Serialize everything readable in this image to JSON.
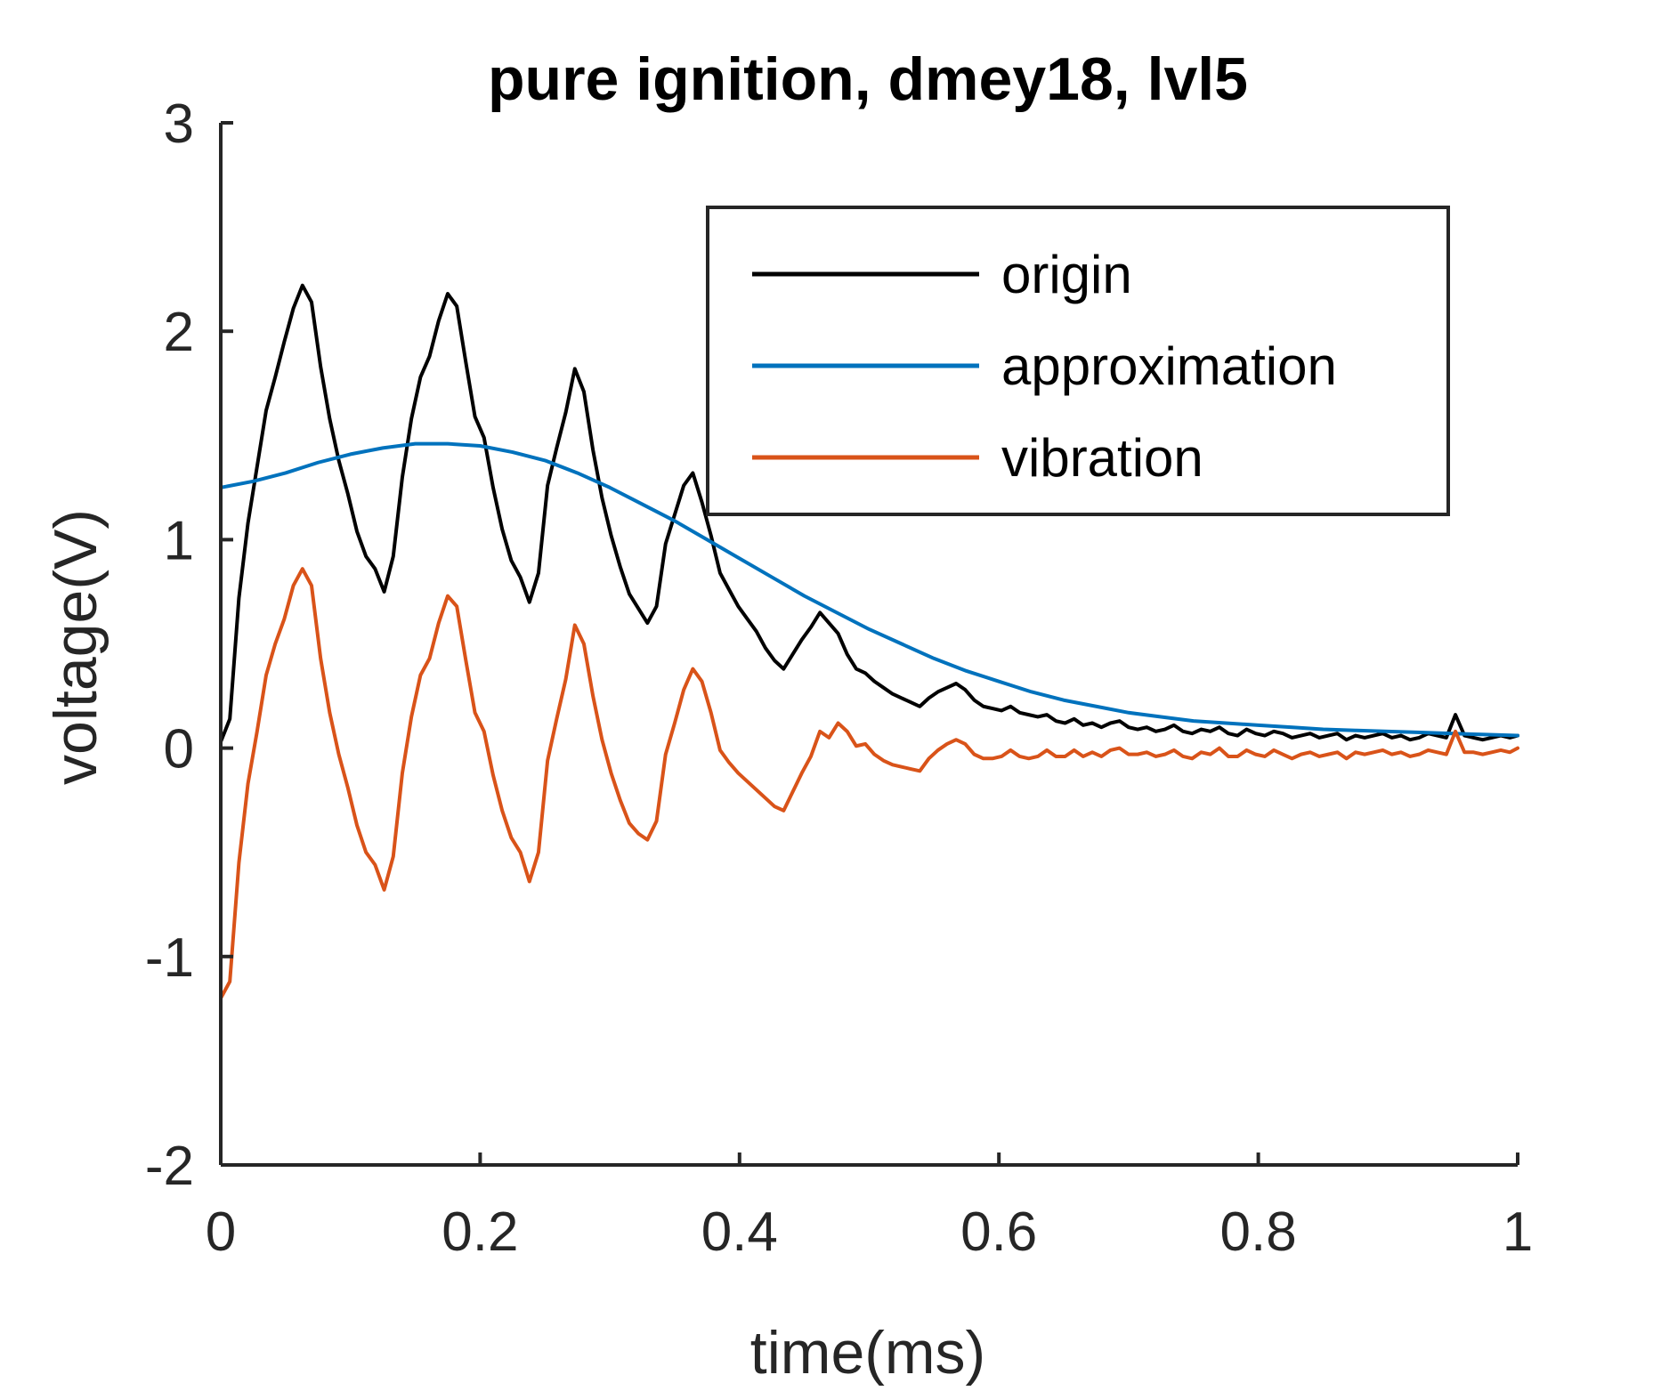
{
  "chart_data": {
    "type": "line",
    "title": "pure ignition, dmey18, lvl5",
    "xlabel": "time(ms)",
    "ylabel": "voltage(V)",
    "xlim": [
      0,
      1
    ],
    "ylim": [
      -2,
      3
    ],
    "xticks": [
      0,
      0.2,
      0.4,
      0.6,
      0.8,
      1
    ],
    "xtick_labels": [
      "0",
      "0.2",
      "0.4",
      "0.6",
      "0.8",
      "1"
    ],
    "yticks": [
      -2,
      -1,
      0,
      1,
      2,
      3
    ],
    "ytick_labels": [
      "-2",
      "-1",
      "0",
      "1",
      "2",
      "3"
    ],
    "grid": false,
    "legend_position": "top-right",
    "series": [
      {
        "name": "origin",
        "color": "#000000",
        "x": [
          0,
          0.007,
          0.014,
          0.021,
          0.028,
          0.035,
          0.042,
          0.049,
          0.056,
          0.063,
          0.07,
          0.077,
          0.084,
          0.091,
          0.098,
          0.105,
          0.112,
          0.119,
          0.126,
          0.133,
          0.14,
          0.147,
          0.154,
          0.161,
          0.168,
          0.175,
          0.182,
          0.189,
          0.196,
          0.203,
          0.21,
          0.217,
          0.224,
          0.231,
          0.238,
          0.245,
          0.252,
          0.259,
          0.266,
          0.273,
          0.28,
          0.287,
          0.294,
          0.301,
          0.308,
          0.315,
          0.322,
          0.329,
          0.336,
          0.343,
          0.35,
          0.357,
          0.364,
          0.371,
          0.378,
          0.385,
          0.392,
          0.399,
          0.406,
          0.413,
          0.42,
          0.427,
          0.434,
          0.441,
          0.448,
          0.455,
          0.462,
          0.469,
          0.476,
          0.483,
          0.49,
          0.497,
          0.504,
          0.511,
          0.518,
          0.525,
          0.532,
          0.539,
          0.546,
          0.553,
          0.56,
          0.567,
          0.574,
          0.581,
          0.588,
          0.595,
          0.602,
          0.609,
          0.616,
          0.623,
          0.63,
          0.637,
          0.644,
          0.651,
          0.658,
          0.665,
          0.672,
          0.679,
          0.686,
          0.693,
          0.7,
          0.707,
          0.714,
          0.721,
          0.728,
          0.735,
          0.742,
          0.749,
          0.756,
          0.763,
          0.77,
          0.777,
          0.784,
          0.791,
          0.798,
          0.805,
          0.812,
          0.819,
          0.826,
          0.833,
          0.84,
          0.847,
          0.854,
          0.861,
          0.868,
          0.875,
          0.882,
          0.889,
          0.896,
          0.903,
          0.91,
          0.917,
          0.924,
          0.931,
          0.938,
          0.945,
          0.952,
          0.959,
          0.966,
          0.973,
          0.98,
          0.987,
          0.994,
          1.0
        ],
        "y": [
          0.03,
          0.14,
          0.72,
          1.08,
          1.35,
          1.62,
          1.78,
          1.95,
          2.11,
          2.22,
          2.14,
          1.83,
          1.58,
          1.38,
          1.22,
          1.04,
          0.92,
          0.86,
          0.75,
          0.92,
          1.3,
          1.58,
          1.78,
          1.88,
          2.05,
          2.18,
          2.12,
          1.85,
          1.59,
          1.49,
          1.25,
          1.05,
          0.9,
          0.82,
          0.7,
          0.84,
          1.26,
          1.44,
          1.61,
          1.82,
          1.71,
          1.43,
          1.2,
          1.02,
          0.87,
          0.74,
          0.67,
          0.6,
          0.68,
          0.98,
          1.12,
          1.26,
          1.32,
          1.18,
          1.02,
          0.84,
          0.76,
          0.68,
          0.62,
          0.56,
          0.48,
          0.42,
          0.38,
          0.45,
          0.52,
          0.58,
          0.65,
          0.6,
          0.55,
          0.45,
          0.38,
          0.36,
          0.32,
          0.29,
          0.26,
          0.24,
          0.22,
          0.2,
          0.24,
          0.27,
          0.29,
          0.31,
          0.28,
          0.23,
          0.2,
          0.19,
          0.18,
          0.2,
          0.17,
          0.16,
          0.15,
          0.16,
          0.13,
          0.12,
          0.14,
          0.11,
          0.12,
          0.1,
          0.12,
          0.13,
          0.1,
          0.09,
          0.1,
          0.08,
          0.09,
          0.11,
          0.08,
          0.07,
          0.09,
          0.08,
          0.1,
          0.07,
          0.06,
          0.09,
          0.07,
          0.06,
          0.08,
          0.07,
          0.05,
          0.06,
          0.07,
          0.05,
          0.06,
          0.07,
          0.04,
          0.06,
          0.05,
          0.06,
          0.07,
          0.05,
          0.06,
          0.04,
          0.05,
          0.07,
          0.06,
          0.05,
          0.16,
          0.06,
          0.05,
          0.04,
          0.05,
          0.06,
          0.05,
          0.06
        ]
      },
      {
        "name": "approximation",
        "color": "#0072BD",
        "x": [
          0,
          0.025,
          0.05,
          0.075,
          0.1,
          0.125,
          0.15,
          0.175,
          0.2,
          0.225,
          0.25,
          0.275,
          0.3,
          0.325,
          0.35,
          0.375,
          0.4,
          0.425,
          0.45,
          0.475,
          0.5,
          0.525,
          0.55,
          0.575,
          0.6,
          0.625,
          0.65,
          0.675,
          0.7,
          0.725,
          0.75,
          0.775,
          0.8,
          0.825,
          0.85,
          0.875,
          0.9,
          0.925,
          0.95,
          0.975,
          1.0
        ],
        "y": [
          1.25,
          1.28,
          1.32,
          1.37,
          1.41,
          1.44,
          1.46,
          1.46,
          1.45,
          1.42,
          1.38,
          1.32,
          1.25,
          1.17,
          1.09,
          1.0,
          0.91,
          0.82,
          0.73,
          0.65,
          0.57,
          0.5,
          0.43,
          0.37,
          0.32,
          0.27,
          0.23,
          0.2,
          0.17,
          0.15,
          0.13,
          0.12,
          0.11,
          0.1,
          0.09,
          0.085,
          0.08,
          0.075,
          0.07,
          0.065,
          0.06
        ]
      },
      {
        "name": "vibration",
        "color": "#D95319",
        "x": [
          0,
          0.007,
          0.014,
          0.021,
          0.028,
          0.035,
          0.042,
          0.049,
          0.056,
          0.063,
          0.07,
          0.077,
          0.084,
          0.091,
          0.098,
          0.105,
          0.112,
          0.119,
          0.126,
          0.133,
          0.14,
          0.147,
          0.154,
          0.161,
          0.168,
          0.175,
          0.182,
          0.189,
          0.196,
          0.203,
          0.21,
          0.217,
          0.224,
          0.231,
          0.238,
          0.245,
          0.252,
          0.259,
          0.266,
          0.273,
          0.28,
          0.287,
          0.294,
          0.301,
          0.308,
          0.315,
          0.322,
          0.329,
          0.336,
          0.343,
          0.35,
          0.357,
          0.364,
          0.371,
          0.378,
          0.385,
          0.392,
          0.399,
          0.406,
          0.413,
          0.42,
          0.427,
          0.434,
          0.441,
          0.448,
          0.455,
          0.462,
          0.469,
          0.476,
          0.483,
          0.49,
          0.497,
          0.504,
          0.511,
          0.518,
          0.525,
          0.532,
          0.539,
          0.546,
          0.553,
          0.56,
          0.567,
          0.574,
          0.581,
          0.588,
          0.595,
          0.602,
          0.609,
          0.616,
          0.623,
          0.63,
          0.637,
          0.644,
          0.651,
          0.658,
          0.665,
          0.672,
          0.679,
          0.686,
          0.693,
          0.7,
          0.707,
          0.714,
          0.721,
          0.728,
          0.735,
          0.742,
          0.749,
          0.756,
          0.763,
          0.77,
          0.777,
          0.784,
          0.791,
          0.798,
          0.805,
          0.812,
          0.819,
          0.826,
          0.833,
          0.84,
          0.847,
          0.854,
          0.861,
          0.868,
          0.875,
          0.882,
          0.889,
          0.896,
          0.903,
          0.91,
          0.917,
          0.924,
          0.931,
          0.938,
          0.945,
          0.952,
          0.959,
          0.966,
          0.973,
          0.98,
          0.987,
          0.994,
          1.0
        ],
        "y": [
          -1.2,
          -1.12,
          -0.55,
          -0.17,
          0.08,
          0.35,
          0.5,
          0.62,
          0.78,
          0.86,
          0.78,
          0.43,
          0.17,
          -0.03,
          -0.19,
          -0.37,
          -0.5,
          -0.56,
          -0.68,
          -0.52,
          -0.12,
          0.15,
          0.35,
          0.43,
          0.6,
          0.73,
          0.68,
          0.42,
          0.17,
          0.08,
          -0.13,
          -0.3,
          -0.43,
          -0.5,
          -0.64,
          -0.5,
          -0.06,
          0.14,
          0.33,
          0.59,
          0.5,
          0.25,
          0.04,
          -0.12,
          -0.25,
          -0.36,
          -0.41,
          -0.44,
          -0.35,
          -0.03,
          0.12,
          0.28,
          0.38,
          0.32,
          0.17,
          -0.01,
          -0.07,
          -0.12,
          -0.16,
          -0.2,
          -0.24,
          -0.28,
          -0.3,
          -0.21,
          -0.12,
          -0.04,
          0.08,
          0.05,
          0.12,
          0.08,
          0.01,
          0.02,
          -0.03,
          -0.06,
          -0.08,
          -0.09,
          -0.1,
          -0.11,
          -0.05,
          -0.01,
          0.02,
          0.04,
          0.02,
          -0.03,
          -0.05,
          -0.05,
          -0.04,
          -0.01,
          -0.04,
          -0.05,
          -0.04,
          -0.01,
          -0.04,
          -0.04,
          -0.01,
          -0.04,
          -0.02,
          -0.04,
          -0.01,
          0.0,
          -0.03,
          -0.03,
          -0.02,
          -0.04,
          -0.03,
          -0.01,
          -0.04,
          -0.05,
          -0.02,
          -0.03,
          0.0,
          -0.04,
          -0.04,
          -0.01,
          -0.03,
          -0.04,
          -0.01,
          -0.03,
          -0.05,
          -0.03,
          -0.02,
          -0.04,
          -0.03,
          -0.02,
          -0.05,
          -0.02,
          -0.03,
          -0.02,
          -0.01,
          -0.03,
          -0.02,
          -0.04,
          -0.03,
          -0.01,
          -0.02,
          -0.03,
          0.08,
          -0.02,
          -0.02,
          -0.03,
          -0.02,
          -0.01,
          -0.02,
          0.0
        ]
      }
    ]
  }
}
